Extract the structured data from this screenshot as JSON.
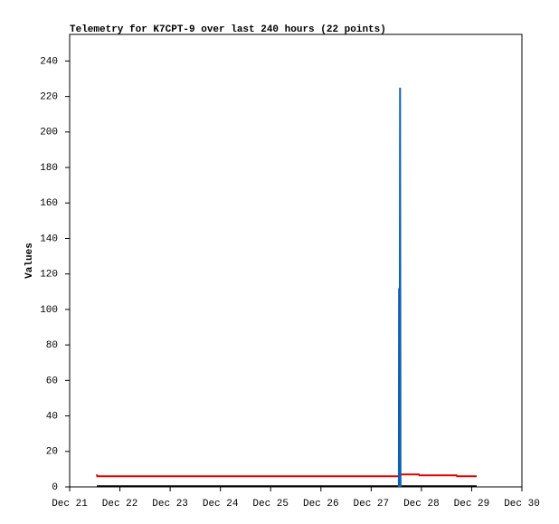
{
  "chart_data": {
    "type": "line",
    "title": "Telemetry for K7CPT-9 over last 240 hours (22 points)",
    "y_label": "Values",
    "xlim": [
      21,
      30
    ],
    "xticks": [
      {
        "value": 21,
        "label": "Dec 21"
      },
      {
        "value": 22,
        "label": "Dec 22"
      },
      {
        "value": 23,
        "label": "Dec 23"
      },
      {
        "value": 24,
        "label": "Dec 24"
      },
      {
        "value": 25,
        "label": "Dec 25"
      },
      {
        "value": 26,
        "label": "Dec 26"
      },
      {
        "value": 27,
        "label": "Dec 27"
      },
      {
        "value": 28,
        "label": "Dec 28"
      },
      {
        "value": 29,
        "label": "Dec 29"
      },
      {
        "value": 30,
        "label": "Dec 30"
      }
    ],
    "ylim": [
      0,
      255
    ],
    "yticks": [
      0,
      20,
      40,
      60,
      80,
      100,
      120,
      140,
      160,
      180,
      200,
      220,
      240
    ],
    "series": [
      {
        "color": "#000000",
        "x": [
          21.54,
          29.1
        ],
        "values": [
          0.4,
          0.4
        ]
      },
      {
        "color": "#e00000",
        "x": [
          21.54,
          21.55,
          27.55,
          27.56,
          27.95,
          27.96,
          28.7,
          28.71,
          29.1
        ],
        "values": [
          7,
          6,
          6,
          7,
          7,
          6.5,
          6.5,
          6,
          6
        ]
      },
      {
        "color": "#1060b0",
        "x": [
          27.55,
          27.555,
          27.565,
          27.575,
          27.585
        ],
        "values": [
          0,
          112,
          0,
          225,
          0
        ]
      }
    ]
  }
}
